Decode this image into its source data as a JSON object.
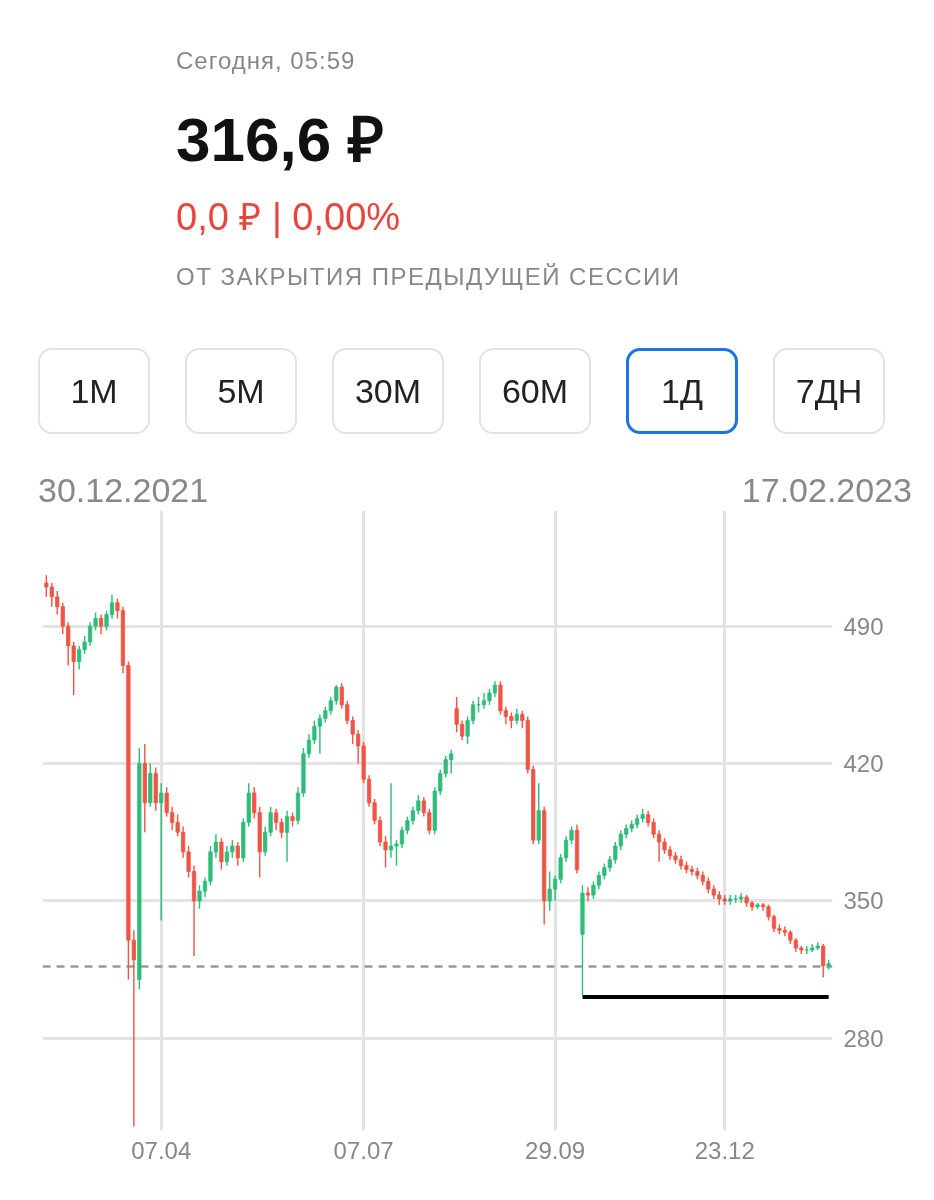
{
  "chart_data": {
    "type": "candlestick",
    "title": "316,6 ₽",
    "subtitle": "0,0 ₽ | 0,00%",
    "annotations": [
      "Сегодня, 05:59",
      "ОТ ЗАКРЫТИЯ ПРЕДЫДУЩЕЙ СЕССИИ",
      "1М",
      "5М",
      "30М",
      "60М",
      "1Д",
      "7ДН",
      "30.12.2021",
      "17.02.2023"
    ],
    "categories": [
      null,
      null,
      null,
      null,
      null,
      null,
      null,
      null,
      null,
      null,
      null,
      null,
      null,
      null,
      null,
      null,
      null,
      null,
      null,
      null,
      null,
      "07.04",
      null,
      null,
      null,
      null,
      null,
      null,
      null,
      null,
      null,
      null,
      null,
      null,
      null,
      null,
      null,
      null,
      null,
      null,
      null,
      null,
      null,
      null,
      null,
      null,
      null,
      null,
      null,
      null,
      null,
      null,
      null,
      null,
      null,
      null,
      null,
      null,
      "07.07",
      null,
      null,
      null,
      null,
      null,
      null,
      null,
      null,
      null,
      null,
      null,
      null,
      null,
      null,
      null,
      null,
      null,
      null,
      null,
      null,
      null,
      null,
      null,
      null,
      null,
      null,
      null,
      null,
      null,
      null,
      null,
      null,
      null,
      null,
      "29.09",
      null,
      null,
      null,
      null,
      null,
      null,
      null,
      null,
      null,
      null,
      null,
      null,
      null,
      null,
      null,
      null,
      null,
      null,
      null,
      null,
      null,
      null,
      null,
      null,
      null,
      null,
      null,
      null,
      null,
      null,
      "23.12",
      null,
      null,
      null,
      null,
      null,
      null,
      null,
      null,
      null,
      null,
      null,
      null,
      null,
      null,
      null,
      null,
      null,
      null,
      null
    ],
    "ohlc": [
      [
        512,
        516,
        505,
        510
      ],
      [
        510,
        512,
        500,
        505
      ],
      [
        505,
        508,
        496,
        500
      ],
      [
        500,
        502,
        486,
        490
      ],
      [
        490,
        492,
        470,
        480
      ],
      [
        480,
        482,
        455,
        472
      ],
      [
        472,
        480,
        468,
        478
      ],
      [
        478,
        485,
        476,
        482
      ],
      [
        482,
        492,
        480,
        490
      ],
      [
        490,
        497,
        488,
        494
      ],
      [
        494,
        496,
        486,
        490
      ],
      [
        490,
        498,
        488,
        496
      ],
      [
        496,
        506,
        494,
        502
      ],
      [
        502,
        504,
        494,
        498
      ],
      [
        498,
        500,
        466,
        470
      ],
      [
        470,
        472,
        310,
        330
      ],
      [
        330,
        335,
        235,
        320
      ],
      [
        310,
        428,
        305,
        420
      ],
      [
        420,
        430,
        385,
        400
      ],
      [
        400,
        420,
        398,
        415
      ],
      [
        415,
        418,
        396,
        400
      ],
      [
        400,
        410,
        340,
        405
      ],
      [
        405,
        408,
        393,
        395
      ],
      [
        395,
        398,
        386,
        390
      ],
      [
        390,
        394,
        383,
        385
      ],
      [
        385,
        388,
        372,
        375
      ],
      [
        375,
        378,
        362,
        365
      ],
      [
        365,
        368,
        322,
        350
      ],
      [
        350,
        358,
        346,
        355
      ],
      [
        355,
        362,
        352,
        360
      ],
      [
        360,
        378,
        358,
        375
      ],
      [
        375,
        384,
        372,
        380
      ],
      [
        380,
        382,
        366,
        370
      ],
      [
        370,
        378,
        368,
        375
      ],
      [
        375,
        381,
        372,
        378
      ],
      [
        378,
        380,
        368,
        372
      ],
      [
        372,
        392,
        370,
        390
      ],
      [
        390,
        410,
        388,
        405
      ],
      [
        405,
        408,
        392,
        395
      ],
      [
        395,
        398,
        362,
        375
      ],
      [
        375,
        388,
        373,
        385
      ],
      [
        385,
        398,
        383,
        395
      ],
      [
        395,
        397,
        386,
        390
      ],
      [
        390,
        392,
        382,
        385
      ],
      [
        385,
        396,
        370,
        393
      ],
      [
        393,
        395,
        388,
        391
      ],
      [
        391,
        408,
        389,
        405
      ],
      [
        405,
        428,
        403,
        425
      ],
      [
        425,
        435,
        423,
        432
      ],
      [
        432,
        442,
        430,
        439
      ],
      [
        439,
        445,
        425,
        443
      ],
      [
        443,
        449,
        441,
        447
      ],
      [
        447,
        454,
        445,
        452
      ],
      [
        452,
        460,
        450,
        459
      ],
      [
        459,
        461,
        448,
        450
      ],
      [
        450,
        452,
        440,
        442
      ],
      [
        442,
        444,
        430,
        435
      ],
      [
        435,
        437,
        420,
        429
      ],
      [
        429,
        431,
        410,
        412
      ],
      [
        412,
        414,
        398,
        400
      ],
      [
        400,
        402,
        389,
        391
      ],
      [
        391,
        393,
        378,
        380
      ],
      [
        380,
        383,
        367,
        376
      ],
      [
        376,
        410,
        372,
        378
      ],
      [
        378,
        381,
        368,
        379
      ],
      [
        379,
        388,
        377,
        386
      ],
      [
        386,
        393,
        384,
        391
      ],
      [
        391,
        398,
        389,
        396
      ],
      [
        396,
        404,
        394,
        401
      ],
      [
        401,
        403,
        393,
        395
      ],
      [
        395,
        397,
        384,
        386
      ],
      [
        386,
        408,
        384,
        406
      ],
      [
        406,
        417,
        404,
        415
      ],
      [
        415,
        424,
        413,
        422
      ],
      [
        422,
        427,
        415,
        425
      ],
      [
        448,
        454,
        436,
        440
      ],
      [
        440,
        442,
        432,
        434
      ],
      [
        434,
        444,
        430,
        442
      ],
      [
        442,
        452,
        440,
        450
      ],
      [
        450,
        454,
        446,
        450
      ],
      [
        450,
        456,
        448,
        452
      ],
      [
        452,
        458,
        450,
        456
      ],
      [
        456,
        462,
        454,
        460
      ],
      [
        460,
        462,
        445,
        447
      ],
      [
        447,
        449,
        440,
        444
      ],
      [
        444,
        446,
        438,
        442
      ],
      [
        442,
        448,
        440,
        445
      ],
      [
        445,
        447,
        438,
        442
      ],
      [
        442,
        444,
        415,
        417
      ],
      [
        417,
        419,
        379,
        381
      ],
      [
        381,
        410,
        379,
        396
      ],
      [
        396,
        398,
        338,
        350
      ],
      [
        350,
        365,
        345,
        356
      ],
      [
        356,
        363,
        350,
        361
      ],
      [
        361,
        374,
        359,
        372
      ],
      [
        372,
        383,
        370,
        381
      ],
      [
        381,
        388,
        379,
        386
      ],
      [
        386,
        389,
        364,
        366
      ],
      [
        333,
        358,
        302,
        354
      ],
      [
        354,
        357,
        350,
        353
      ],
      [
        353,
        360,
        351,
        358
      ],
      [
        358,
        365,
        356,
        363
      ],
      [
        363,
        369,
        361,
        367
      ],
      [
        367,
        373,
        365,
        371
      ],
      [
        371,
        380,
        369,
        378
      ],
      [
        378,
        386,
        376,
        384
      ],
      [
        384,
        389,
        382,
        387
      ],
      [
        387,
        391,
        385,
        389
      ],
      [
        389,
        394,
        387,
        392
      ],
      [
        392,
        397,
        390,
        394
      ],
      [
        394,
        396,
        388,
        390
      ],
      [
        390,
        392,
        382,
        384
      ],
      [
        384,
        386,
        370,
        380
      ],
      [
        380,
        382,
        374,
        376
      ],
      [
        376,
        378,
        371,
        373
      ],
      [
        373,
        375,
        369,
        371
      ],
      [
        371,
        373,
        366,
        368
      ],
      [
        368,
        370,
        364,
        366
      ],
      [
        366,
        368,
        363,
        365
      ],
      [
        365,
        367,
        361,
        363
      ],
      [
        363,
        365,
        358,
        360
      ],
      [
        360,
        362,
        354,
        356
      ],
      [
        356,
        358,
        351,
        353
      ],
      [
        353,
        355,
        348,
        351
      ],
      [
        351,
        353,
        348,
        350
      ],
      [
        350,
        353,
        348,
        351
      ],
      [
        351,
        353,
        349,
        351
      ],
      [
        351,
        354,
        349,
        352
      ],
      [
        352,
        353,
        347,
        349
      ],
      [
        349,
        350,
        345,
        347
      ],
      [
        347,
        349,
        346,
        348
      ],
      [
        348,
        349,
        345,
        347
      ],
      [
        347,
        348,
        340,
        342
      ],
      [
        342,
        343,
        334,
        336
      ],
      [
        336,
        338,
        333,
        335
      ],
      [
        335,
        337,
        332,
        334
      ],
      [
        334,
        335,
        328,
        330
      ],
      [
        330,
        331,
        324,
        326
      ],
      [
        326,
        327,
        323,
        325
      ],
      [
        325,
        327,
        323,
        325
      ],
      [
        325,
        328,
        324,
        326
      ],
      [
        326,
        329,
        325,
        327
      ],
      [
        327,
        328,
        311,
        317
      ],
      [
        317,
        320,
        315,
        318
      ]
    ],
    "series": [
      {
        "type": "line",
        "color": "#000000",
        "values": [
          null,
          null,
          null,
          null,
          null,
          null,
          null,
          null,
          null,
          null,
          null,
          null,
          null,
          null,
          null,
          null,
          null,
          null,
          null,
          null,
          null,
          null,
          null,
          null,
          null,
          null,
          null,
          null,
          null,
          null,
          null,
          null,
          null,
          null,
          null,
          null,
          null,
          null,
          null,
          null,
          null,
          null,
          null,
          null,
          null,
          null,
          null,
          null,
          null,
          null,
          null,
          null,
          null,
          null,
          null,
          null,
          null,
          null,
          null,
          null,
          null,
          null,
          null,
          null,
          null,
          null,
          null,
          null,
          null,
          null,
          null,
          null,
          null,
          null,
          null,
          null,
          null,
          null,
          null,
          null,
          null,
          null,
          null,
          null,
          null,
          null,
          null,
          null,
          null,
          null,
          null,
          null,
          null,
          null,
          null,
          null,
          null,
          null,
          301,
          301,
          301,
          301,
          301,
          301,
          301,
          301,
          301,
          301,
          301,
          301,
          301,
          301,
          301,
          301,
          301,
          301,
          301,
          301,
          301,
          301,
          301,
          301,
          301,
          301,
          301,
          301,
          301,
          301,
          301,
          301,
          301,
          301,
          301,
          301,
          301,
          301,
          301,
          301,
          301,
          301,
          301,
          301,
          301,
          301
        ]
      }
    ],
    "ylim": [
      233,
      549
    ],
    "yticks": [
      280,
      350,
      420,
      490
    ],
    "ref_lines": [
      {
        "axis": "y",
        "value": 316.6,
        "color": "#999999",
        "line_style": "dashed"
      }
    ],
    "grid": true
  }
}
